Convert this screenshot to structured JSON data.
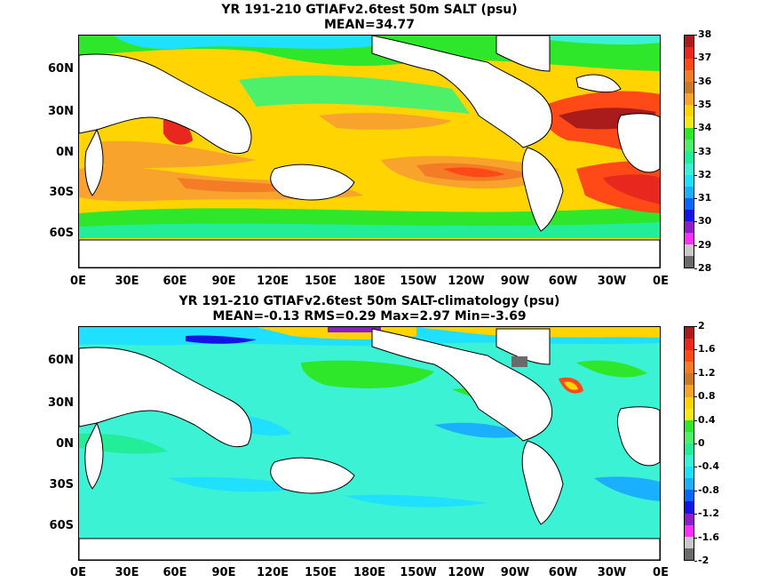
{
  "top": {
    "title": "YR 191-210 GTIAFv2.6test 50m SALT (psu)",
    "subtitle": "MEAN=34.77",
    "colorbar_labels": [
      "38",
      "37",
      "36",
      "35",
      "34",
      "33",
      "32",
      "31",
      "30",
      "29",
      "28"
    ],
    "colorbar_colors": [
      "#aa1c1c",
      "#e8281f",
      "#ff4a18",
      "#f47c26",
      "#c9792a",
      "#f8a32c",
      "#ffd400",
      "#f4e81a",
      "#2ee62a",
      "#4ef06a",
      "#22ee9a",
      "#3cf2d4",
      "#20e0ff",
      "#1ab0ff",
      "#0a64ff",
      "#1414e6",
      "#8c1ec8",
      "#ff30ff",
      "#c8c8c8",
      "#6a6a6a"
    ]
  },
  "bottom": {
    "title": "YR 191-210 GTIAFv2.6test 50m SALT-climatology (psu)",
    "subtitle": "MEAN=-0.13   RMS=0.29   Max=2.97   Min=-3.69",
    "colorbar_labels": [
      "2",
      "1.6",
      "1.2",
      "0.8",
      "0.4",
      "0",
      "-0.4",
      "-0.8",
      "-1.2",
      "-1.6",
      "-2"
    ],
    "colorbar_colors": [
      "#aa1c1c",
      "#e8281f",
      "#ff4a18",
      "#f47c26",
      "#c9792a",
      "#f8a32c",
      "#ffd400",
      "#f4e81a",
      "#2ee62a",
      "#4ef06a",
      "#22ee9a",
      "#3cf2d4",
      "#20e0ff",
      "#1ab0ff",
      "#0a64ff",
      "#1414e6",
      "#8c1ec8",
      "#ff30ff",
      "#c8c8c8",
      "#6a6a6a"
    ]
  },
  "x_labels": [
    "0E",
    "30E",
    "60E",
    "90E",
    "120E",
    "150E",
    "180E",
    "150W",
    "120W",
    "90W",
    "60W",
    "30W",
    "0E"
  ],
  "y_labels": [
    "60N",
    "30N",
    "0N",
    "30S",
    "60S"
  ]
}
